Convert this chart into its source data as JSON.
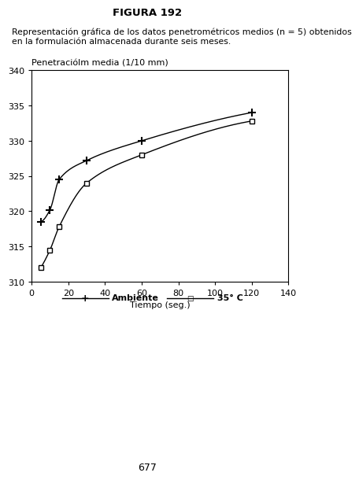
{
  "title": "FIGURA 192",
  "description_line1": "Representación gráfica de los datos penetrométricos medios (n = 5) obtenidos",
  "description_line2": "en la formulación almacenada durante seis meses.",
  "ylabel": "Penetraciólm media (1/10 mm)",
  "xlabel": "Tiempo (seg.)",
  "xlim": [
    0,
    140
  ],
  "ylim": [
    310,
    340
  ],
  "yticks": [
    310,
    315,
    320,
    325,
    330,
    335,
    340
  ],
  "xticks": [
    0,
    20,
    40,
    60,
    80,
    100,
    120,
    140
  ],
  "ambiente_x": [
    5,
    10,
    15,
    30,
    60,
    120
  ],
  "ambiente_y": [
    318.5,
    320.2,
    324.5,
    327.2,
    330.0,
    334.0
  ],
  "temp35_x": [
    5,
    10,
    15,
    30,
    60,
    120
  ],
  "temp35_y": [
    312.0,
    314.5,
    317.8,
    324.0,
    328.0,
    332.8
  ],
  "legend_ambiente": "Ambiente",
  "legend_35c": "35° C",
  "page_number": "677",
  "background_color": "#ffffff",
  "line_color": "#000000"
}
